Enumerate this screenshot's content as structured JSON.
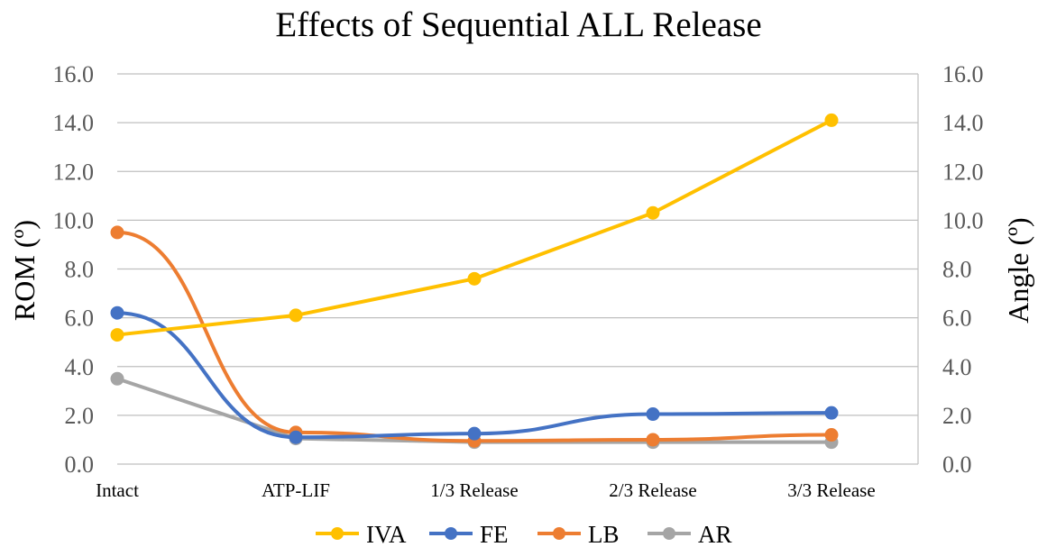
{
  "chart_data": {
    "type": "line",
    "title": "Effects of Sequential ALL Release",
    "ylabel": "ROM (º)",
    "y2label": "Angle (º)",
    "xlabel": "",
    "categories": [
      "Intact",
      "ATP-LIF",
      "1/3 Release",
      "2/3 Release",
      "3/3 Release"
    ],
    "ylim": [
      0,
      16
    ],
    "y2lim": [
      0,
      16
    ],
    "yticks": [
      "0.0",
      "2.0",
      "4.0",
      "6.0",
      "8.0",
      "10.0",
      "12.0",
      "14.0",
      "16.0"
    ],
    "grid": true,
    "legend_position": "bottom",
    "series": [
      {
        "name": "IVA",
        "color": "#FFC000",
        "axis": "right",
        "values": [
          5.3,
          6.1,
          7.6,
          10.3,
          14.1
        ]
      },
      {
        "name": "FE",
        "color": "#4472C4",
        "axis": "left",
        "values": [
          6.2,
          1.1,
          1.25,
          2.05,
          2.1
        ]
      },
      {
        "name": "LB",
        "color": "#ED7D31",
        "axis": "left",
        "values": [
          9.5,
          1.3,
          0.95,
          1.0,
          1.2
        ]
      },
      {
        "name": "AR",
        "color": "#A5A5A5",
        "axis": "left",
        "values": [
          3.5,
          1.05,
          0.9,
          0.9,
          0.9
        ]
      }
    ]
  }
}
